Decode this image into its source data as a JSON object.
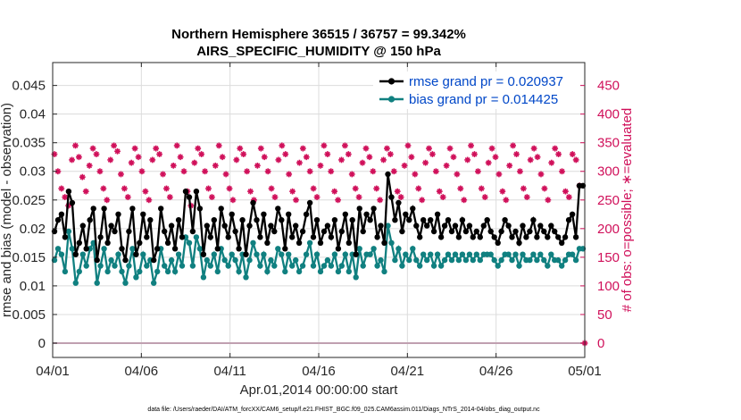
{
  "chart_data": {
    "type": "line",
    "title": "Northern Hemisphere 36515 / 36757 = 99.342%",
    "subtitle": "AIRS_SPECIFIC_HUMIDITY @ 150 hPa",
    "xlabel": "Apr.01,2014 00:00:00 start",
    "ylabel_left": "rmse and bias (model - observation)",
    "ylabel_right": "# of obs: o=possible; ∗=evaluated",
    "footnote": "data file: /Users/raeder/DAI/ATM_forcXX/CAM6_setup/f.e21.FHIST_BGC.f09_025.CAM6assim.011/Diags_NTrS_2014-04/obs_diag_output.nc",
    "xlim": [
      0,
      30
    ],
    "ylim_left": [
      -0.0025,
      0.049
    ],
    "ylim_right": [
      -25,
      490
    ],
    "x_ticks": [
      0,
      5,
      10,
      15,
      20,
      25,
      30
    ],
    "x_tick_labels": [
      "04/01",
      "04/06",
      "04/11",
      "04/16",
      "04/21",
      "04/26",
      "05/01"
    ],
    "y_left_ticks": [
      0,
      0.005,
      0.01,
      0.015,
      0.02,
      0.025,
      0.03,
      0.035,
      0.04,
      0.045
    ],
    "y_left_tick_labels": [
      "0",
      "0.005",
      "0.01",
      "0.015",
      "0.02",
      "0.025",
      "0.03",
      "0.035",
      "0.04",
      "0.045"
    ],
    "y_right_ticks": [
      0,
      50,
      100,
      150,
      200,
      250,
      300,
      350,
      400,
      450
    ],
    "y_right_tick_labels": [
      "0",
      "50",
      "100",
      "150",
      "200",
      "250",
      "300",
      "350",
      "400",
      "450"
    ],
    "grid": true,
    "legend": "top-right",
    "colors": {
      "rmse": "#000000",
      "bias": "#108080",
      "obs": "#d0105a",
      "zero_line": "#c0a0b0",
      "legend_text": "#0047c8",
      "right_axis": "#d0105a"
    },
    "series": [
      {
        "name": "rmse grand pr = 0.020937",
        "axis": "left",
        "values": [
          0.0195,
          0.0215,
          0.0225,
          0.0185,
          0.0265,
          0.0245,
          0.0155,
          0.0175,
          0.0205,
          0.0165,
          0.0215,
          0.0235,
          0.0145,
          0.0185,
          0.0235,
          0.0175,
          0.0205,
          0.0195,
          0.0225,
          0.0165,
          0.0145,
          0.0195,
          0.0235,
          0.0155,
          0.0175,
          0.0225,
          0.0185,
          0.0215,
          0.0145,
          0.0165,
          0.0235,
          0.0195,
          0.0175,
          0.0205,
          0.0165,
          0.0215,
          0.0185,
          0.0265,
          0.0255,
          0.0195,
          0.0265,
          0.0235,
          0.0155,
          0.0205,
          0.0185,
          0.0215,
          0.0165,
          0.0235,
          0.0205,
          0.0185,
          0.0225,
          0.0195,
          0.0165,
          0.0215,
          0.0155,
          0.0205,
          0.0245,
          0.0215,
          0.0185,
          0.0225,
          0.0175,
          0.0205,
          0.0195,
          0.0235,
          0.0215,
          0.0165,
          0.0225,
          0.0185,
          0.0205,
          0.0175,
          0.0195,
          0.0225,
          0.0245,
          0.0185,
          0.0215,
          0.0175,
          0.0195,
          0.0205,
          0.0185,
          0.0215,
          0.0165,
          0.0195,
          0.0225,
          0.0175,
          0.0215,
          0.0155,
          0.0235,
          0.0195,
          0.0225,
          0.0215,
          0.0235,
          0.0185,
          0.0205,
          0.0175,
          0.0295,
          0.0255,
          0.0215,
          0.0245,
          0.0195,
          0.0225,
          0.0215,
          0.0235,
          0.0205,
          0.0185,
          0.0215,
          0.0205,
          0.0215,
          0.0195,
          0.0225,
          0.0185,
          0.0205,
          0.0215,
          0.0195,
          0.0205,
          0.0185,
          0.0215,
          0.0195,
          0.0205,
          0.0185,
          0.0195,
          0.0185,
          0.0205,
          0.0215,
          0.0195,
          0.0185,
          0.0175,
          0.0195,
          0.0215,
          0.0205,
          0.0185,
          0.0195,
          0.0175,
          0.0205,
          0.0185,
          0.0195,
          0.0215,
          0.0185,
          0.0205,
          0.0195,
          0.0185,
          0.0205,
          0.0195,
          0.0185,
          0.0175,
          0.0185,
          0.0215,
          0.0225,
          0.0185,
          0.0275,
          0.0275
        ]
      },
      {
        "name": "bias grand pr = 0.014425",
        "axis": "left",
        "values": [
          0.0145,
          0.0165,
          0.0155,
          0.0125,
          0.0195,
          0.0165,
          0.0105,
          0.0125,
          0.0155,
          0.0135,
          0.0165,
          0.0175,
          0.0105,
          0.0135,
          0.0165,
          0.0125,
          0.0145,
          0.0135,
          0.0155,
          0.0125,
          0.0105,
          0.0135,
          0.0165,
          0.0115,
          0.0125,
          0.0155,
          0.0135,
          0.0145,
          0.0105,
          0.0125,
          0.0165,
          0.0135,
          0.0125,
          0.0145,
          0.0125,
          0.0155,
          0.0135,
          0.0185,
          0.0175,
          0.0135,
          0.0185,
          0.0165,
          0.0115,
          0.0145,
          0.0135,
          0.0155,
          0.0125,
          0.0165,
          0.0145,
          0.0135,
          0.0155,
          0.0145,
          0.0125,
          0.0155,
          0.0115,
          0.0145,
          0.0175,
          0.0155,
          0.0135,
          0.0155,
          0.0125,
          0.0145,
          0.0135,
          0.0165,
          0.0155,
          0.0125,
          0.0155,
          0.0135,
          0.0145,
          0.0125,
          0.0135,
          0.0155,
          0.0175,
          0.0135,
          0.0155,
          0.0125,
          0.0135,
          0.0145,
          0.0135,
          0.0155,
          0.0125,
          0.0135,
          0.0155,
          0.0125,
          0.0155,
          0.0115,
          0.0165,
          0.0135,
          0.0155,
          0.0155,
          0.0165,
          0.0135,
          0.0145,
          0.0125,
          0.0205,
          0.0175,
          0.0145,
          0.0165,
          0.0135,
          0.0155,
          0.0145,
          0.0165,
          0.0145,
          0.0135,
          0.0155,
          0.0145,
          0.0155,
          0.0135,
          0.0155,
          0.0135,
          0.0145,
          0.0155,
          0.0145,
          0.0155,
          0.0145,
          0.0155,
          0.0145,
          0.0155,
          0.0145,
          0.0155,
          0.0145,
          0.0155,
          0.0155,
          0.0155,
          0.0145,
          0.0135,
          0.0145,
          0.0155,
          0.0155,
          0.0145,
          0.0155,
          0.0135,
          0.0155,
          0.0145,
          0.0145,
          0.0155,
          0.0145,
          0.0155,
          0.0145,
          0.0135,
          0.0155,
          0.0145,
          0.0145,
          0.0135,
          0.0145,
          0.0155,
          0.0155,
          0.0145,
          0.0165,
          0.0165
        ]
      },
      {
        "name": "obs evaluated",
        "axis": "right",
        "marker": "asterisk",
        "values": [
          330,
          300,
          270,
          255,
          240,
          320,
          345,
          325,
          290,
          265,
          310,
          340,
          330,
          300,
          270,
          250,
          320,
          345,
          335,
          295,
          270,
          255,
          315,
          340,
          325,
          300,
          265,
          250,
          320,
          340,
          330,
          295,
          270,
          255,
          310,
          345,
          325,
          300,
          265,
          240,
          315,
          340,
          330,
          300,
          270,
          255,
          310,
          345,
          325,
          295,
          270,
          250,
          320,
          340,
          330,
          300,
          265,
          250,
          310,
          340,
          325,
          300,
          270,
          255,
          320,
          345,
          330,
          295,
          265,
          250,
          315,
          340,
          325,
          300,
          270,
          255,
          310,
          345,
          330,
          300,
          265,
          250,
          320,
          345,
          330,
          295,
          270,
          255,
          315,
          340,
          325,
          300,
          270,
          250,
          320,
          340,
          330,
          300,
          265,
          255,
          310,
          345,
          325,
          295,
          270,
          250,
          315,
          340,
          330,
          300,
          265,
          255,
          310,
          340,
          325,
          295,
          270,
          250,
          320,
          345,
          330,
          300,
          270,
          255,
          315,
          340,
          325,
          295,
          265,
          250,
          310,
          345,
          330,
          300,
          270,
          255,
          320,
          340,
          325,
          295,
          270,
          250,
          315,
          340,
          330,
          300,
          265,
          255,
          330,
          320,
          275,
          0
        ]
      }
    ]
  }
}
